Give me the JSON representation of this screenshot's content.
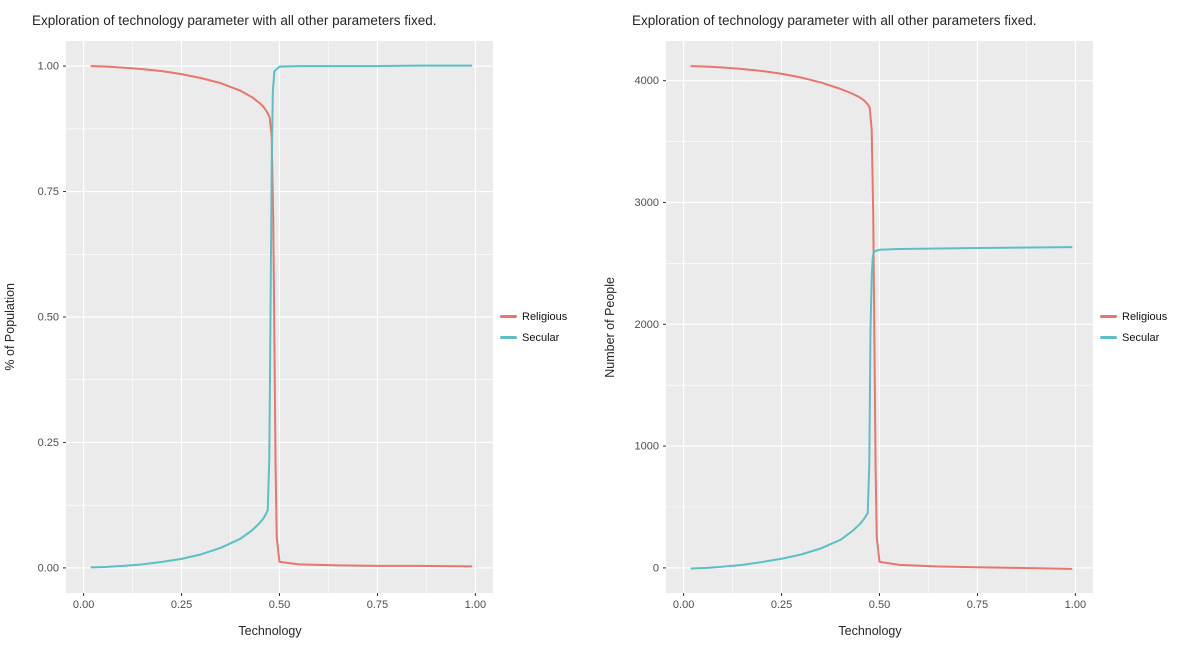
{
  "chart_data": [
    {
      "type": "line",
      "title": "Exploration of technology parameter with all other parameters fixed.",
      "xlabel": "Technology",
      "ylabel": "% of Population",
      "xlim": [
        0,
        1
      ],
      "ylim": [
        0,
        1
      ],
      "grid": true,
      "legend_position": "right",
      "panel_background": "#EBEBEB",
      "grid_color": "#FFFFFF",
      "xticks": {
        "values": [
          0,
          0.25,
          0.5,
          0.75,
          1
        ],
        "labels": [
          "0.00",
          "0.25",
          "0.50",
          "0.75",
          "1.00"
        ]
      },
      "yticks": {
        "values": [
          0,
          0.25,
          0.5,
          0.75,
          1
        ],
        "labels": [
          "0.00",
          "0.25",
          "0.50",
          "0.75",
          "1.00"
        ]
      },
      "series": [
        {
          "name": "Religious",
          "color": "#E8766D",
          "x": [
            0.02,
            0.06,
            0.1,
            0.15,
            0.2,
            0.25,
            0.3,
            0.35,
            0.4,
            0.43,
            0.45,
            0.46,
            0.47,
            0.475,
            0.48,
            0.484,
            0.487,
            0.49,
            0.493,
            0.5,
            0.55,
            0.65,
            0.75,
            0.85,
            0.99
          ],
          "y": [
            1.0,
            0.999,
            0.997,
            0.994,
            0.99,
            0.984,
            0.976,
            0.966,
            0.951,
            0.938,
            0.926,
            0.918,
            0.906,
            0.897,
            0.86,
            0.7,
            0.45,
            0.2,
            0.06,
            0.012,
            0.007,
            0.005,
            0.004,
            0.004,
            0.003
          ]
        },
        {
          "name": "Secular",
          "color": "#5CBFC3",
          "x": [
            0.02,
            0.06,
            0.1,
            0.15,
            0.2,
            0.25,
            0.3,
            0.35,
            0.4,
            0.43,
            0.45,
            0.46,
            0.465,
            0.47,
            0.474,
            0.477,
            0.48,
            0.483,
            0.487,
            0.5,
            0.55,
            0.65,
            0.75,
            0.85,
            0.99
          ],
          "y": [
            0.001,
            0.002,
            0.004,
            0.007,
            0.012,
            0.018,
            0.027,
            0.04,
            0.058,
            0.075,
            0.09,
            0.1,
            0.107,
            0.115,
            0.22,
            0.5,
            0.8,
            0.95,
            0.99,
            0.999,
            1.0,
            1.0,
            1.0,
            1.001,
            1.001
          ]
        }
      ]
    },
    {
      "type": "line",
      "title": "Exploration of technology parameter with all other parameters fixed.",
      "xlabel": "Technology",
      "ylabel": "Number of People",
      "xlim": [
        0,
        1
      ],
      "ylim": [
        0,
        4120
      ],
      "grid": true,
      "legend_position": "right",
      "panel_background": "#EBEBEB",
      "grid_color": "#FFFFFF",
      "xticks": {
        "values": [
          0,
          0.25,
          0.5,
          0.75,
          1
        ],
        "labels": [
          "0.00",
          "0.25",
          "0.50",
          "0.75",
          "1.00"
        ]
      },
      "yticks": {
        "values": [
          0,
          1000,
          2000,
          3000,
          4000
        ],
        "labels": [
          "0",
          "1000",
          "2000",
          "3000",
          "4000"
        ]
      },
      "series": [
        {
          "name": "Religious",
          "color": "#E8766D",
          "x": [
            0.02,
            0.06,
            0.1,
            0.15,
            0.2,
            0.25,
            0.3,
            0.35,
            0.4,
            0.43,
            0.45,
            0.46,
            0.47,
            0.475,
            0.48,
            0.484,
            0.487,
            0.49,
            0.493,
            0.5,
            0.55,
            0.65,
            0.75,
            0.85,
            0.99
          ],
          "y": [
            4120,
            4116,
            4108,
            4096,
            4080,
            4057,
            4026,
            3986,
            3933,
            3895,
            3862,
            3840,
            3806,
            3780,
            3600,
            2900,
            1850,
            820,
            250,
            50,
            25,
            12,
            5,
            0,
            -8
          ]
        },
        {
          "name": "Secular",
          "color": "#5CBFC3",
          "x": [
            0.02,
            0.06,
            0.1,
            0.15,
            0.2,
            0.25,
            0.3,
            0.35,
            0.4,
            0.43,
            0.45,
            0.46,
            0.465,
            0.47,
            0.474,
            0.477,
            0.48,
            0.483,
            0.487,
            0.5,
            0.55,
            0.65,
            0.75,
            0.85,
            0.99
          ],
          "y": [
            -5,
            0,
            10,
            25,
            48,
            75,
            110,
            160,
            230,
            300,
            360,
            400,
            425,
            450,
            860,
            1950,
            2380,
            2560,
            2600,
            2612,
            2618,
            2622,
            2626,
            2630,
            2634
          ]
        }
      ]
    }
  ]
}
